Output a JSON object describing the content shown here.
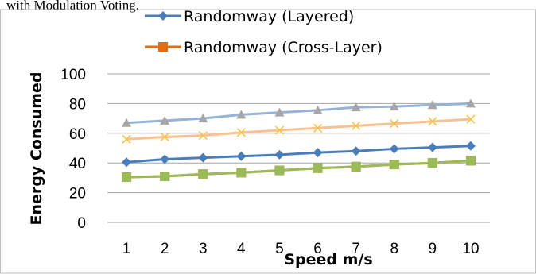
{
  "page": {
    "caption": "with Modulation Voting."
  },
  "chart_data": {
    "type": "line",
    "x": [
      1,
      2,
      3,
      4,
      5,
      6,
      7,
      8,
      9,
      10
    ],
    "xlabel": "Speed m/s",
    "ylabel": "Energy Consumed",
    "ylim": [
      0,
      100
    ],
    "yticks": [
      0,
      20,
      40,
      60,
      80,
      100
    ],
    "grid": true,
    "legend_position": "top",
    "series": [
      {
        "name": "",
        "color": "#95b3d7",
        "marker": "triangle",
        "values": [
          67,
          68.5,
          70,
          72.5,
          74,
          75.5,
          77.5,
          78,
          79,
          80
        ]
      },
      {
        "name": "",
        "color": "#fac090",
        "marker": "x",
        "values": [
          56,
          57.5,
          58.5,
          60.5,
          62,
          63.5,
          65,
          66.5,
          68,
          69.5
        ]
      },
      {
        "name": "Randomway (Layered)",
        "color": "#4a7ebb",
        "marker": "diamond",
        "values": [
          40.5,
          42.5,
          43.5,
          44.5,
          45.5,
          47,
          48,
          49.5,
          50.5,
          51.5
        ]
      },
      {
        "name": "Randomway (Cross-Layer)",
        "color": "#e46c0a",
        "marker": "square",
        "values": [
          30.5,
          31,
          32.5,
          33.5,
          35,
          36.5,
          37.5,
          39,
          40,
          41.5
        ]
      },
      {
        "name": "",
        "color": "#9bbb59",
        "marker": "square",
        "values": [
          30.5,
          31,
          32.5,
          33.5,
          35,
          36.5,
          37.5,
          39,
          40,
          41.5
        ]
      }
    ]
  }
}
